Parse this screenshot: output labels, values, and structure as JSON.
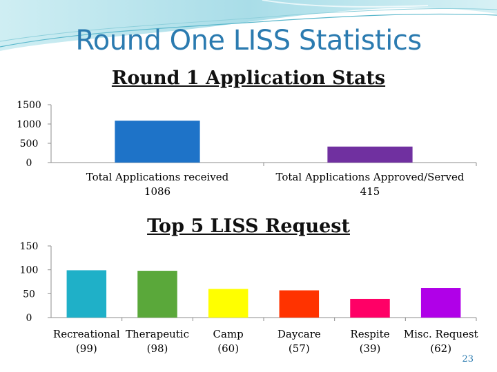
{
  "slide": {
    "title": "Round One LISS Statistics",
    "page_number": "23",
    "accent_color": "#2b7bb0"
  },
  "chart_data": [
    {
      "type": "bar",
      "title": "Round 1 Application Stats",
      "categories": [
        "Total Applications received",
        "Total Applications Approved/Served"
      ],
      "category_values_text": [
        "1086",
        "415"
      ],
      "values": [
        1086,
        415
      ],
      "ylim": [
        0,
        1500
      ],
      "yticks": [
        0,
        500,
        1000,
        1500
      ],
      "colors": [
        "#1e73c8",
        "#7030a0"
      ],
      "grid": false
    },
    {
      "type": "bar",
      "title": "Top 5 LISS Request",
      "categories": [
        "Recreational",
        "Therapeutic",
        "Camp",
        "Daycare",
        "Respite",
        "Misc. Request"
      ],
      "category_values_text": [
        "(99)",
        "(98)",
        "(60)",
        "(57)",
        "(39)",
        "(62)"
      ],
      "values": [
        99,
        98,
        60,
        57,
        39,
        62
      ],
      "ylim": [
        0,
        150
      ],
      "yticks": [
        0,
        50,
        100,
        150
      ],
      "colors": [
        "#1fb0c8",
        "#5aa83a",
        "#ffff00",
        "#ff3300",
        "#ff0066",
        "#b000e8"
      ],
      "grid": false
    }
  ]
}
